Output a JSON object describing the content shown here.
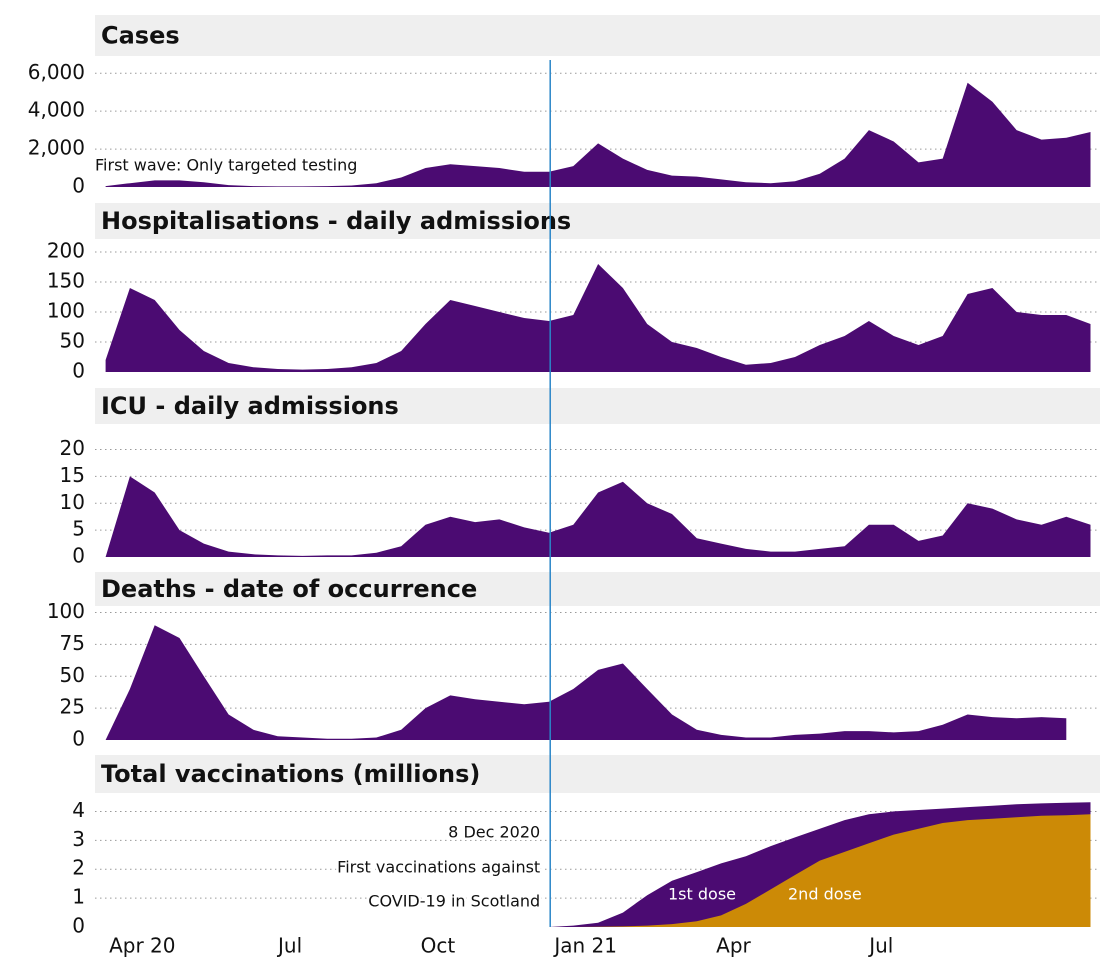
{
  "marker": {
    "x": 2020.94
  },
  "chart_data": [
    {
      "type": "area",
      "title": "Cases",
      "color": "#4b0b72",
      "x": [
        2020.188,
        2020.229,
        2020.271,
        2020.313,
        2020.354,
        2020.396,
        2020.438,
        2020.479,
        2020.521,
        2020.563,
        2020.604,
        2020.646,
        2020.688,
        2020.729,
        2020.771,
        2020.813,
        2020.854,
        2020.896,
        2020.938,
        2020.979,
        2021.021,
        2021.063,
        2021.104,
        2021.146,
        2021.188,
        2021.229,
        2021.271,
        2021.313,
        2021.354,
        2021.396,
        2021.438,
        2021.479,
        2021.521,
        2021.563,
        2021.604,
        2021.646,
        2021.688,
        2021.729,
        2021.771,
        2021.813,
        2021.854
      ],
      "values": [
        50,
        200,
        350,
        350,
        250,
        100,
        50,
        30,
        30,
        50,
        80,
        200,
        500,
        1000,
        1200,
        1100,
        1000,
        800,
        800,
        1100,
        2300,
        1500,
        900,
        600,
        550,
        400,
        250,
        200,
        300,
        700,
        1500,
        3000,
        2400,
        1300,
        1500,
        5500,
        4500,
        3000,
        2500,
        2600,
        2900
      ],
      "xlim": [
        2020.17,
        2021.87
      ],
      "ylim": [
        0,
        6700
      ],
      "yticks": [
        0,
        {
          "value": 2000,
          "label": "2,000"
        },
        {
          "value": 4000,
          "label": "4,000"
        },
        {
          "value": 6000,
          "label": "6,000"
        }
      ],
      "grid": true,
      "annotations": [
        {
          "text": "First wave: Only targeted testing"
        }
      ]
    },
    {
      "type": "area",
      "title": "Hospitalisations - daily admissions",
      "color": "#4b0b72",
      "x": [
        2020.188,
        2020.229,
        2020.271,
        2020.313,
        2020.354,
        2020.396,
        2020.438,
        2020.479,
        2020.521,
        2020.563,
        2020.604,
        2020.646,
        2020.688,
        2020.729,
        2020.771,
        2020.813,
        2020.854,
        2020.896,
        2020.938,
        2020.979,
        2021.021,
        2021.063,
        2021.104,
        2021.146,
        2021.188,
        2021.229,
        2021.271,
        2021.313,
        2021.354,
        2021.396,
        2021.438,
        2021.479,
        2021.521,
        2021.563,
        2021.604,
        2021.646,
        2021.688,
        2021.729,
        2021.771,
        2021.813,
        2021.854
      ],
      "values": [
        20,
        140,
        120,
        70,
        35,
        15,
        8,
        5,
        4,
        5,
        8,
        15,
        35,
        80,
        120,
        110,
        100,
        90,
        85,
        95,
        180,
        140,
        80,
        50,
        40,
        25,
        12,
        15,
        25,
        45,
        60,
        85,
        60,
        45,
        60,
        130,
        140,
        100,
        95,
        95,
        80
      ],
      "xlim": [
        2020.17,
        2021.87
      ],
      "ylim": [
        0,
        215
      ],
      "yticks": [
        0,
        50,
        100,
        150,
        200
      ],
      "grid": true
    },
    {
      "type": "area",
      "title": "ICU - daily admissions",
      "color": "#4b0b72",
      "x": [
        2020.188,
        2020.229,
        2020.271,
        2020.313,
        2020.354,
        2020.396,
        2020.438,
        2020.479,
        2020.521,
        2020.563,
        2020.604,
        2020.646,
        2020.688,
        2020.729,
        2020.771,
        2020.813,
        2020.854,
        2020.896,
        2020.938,
        2020.979,
        2021.021,
        2021.063,
        2021.104,
        2021.146,
        2021.188,
        2021.229,
        2021.271,
        2021.313,
        2021.354,
        2021.396,
        2021.438,
        2021.479,
        2021.521,
        2021.563,
        2021.604,
        2021.646,
        2021.688,
        2021.729,
        2021.771,
        2021.813,
        2021.854
      ],
      "values": [
        0,
        15,
        12,
        5,
        2.5,
        1,
        0.5,
        0.3,
        0.2,
        0.3,
        0.3,
        0.8,
        2,
        6,
        7.5,
        6.5,
        7,
        5.5,
        4.5,
        6,
        12,
        14,
        10,
        8,
        3.5,
        2.5,
        1.5,
        1,
        1,
        1.5,
        2,
        6,
        6,
        3,
        4,
        10,
        9,
        7,
        6,
        7.5,
        6
      ],
      "xlim": [
        2020.17,
        2021.87
      ],
      "ylim": [
        0,
        24
      ],
      "yticks": [
        0,
        5,
        10,
        15,
        20
      ],
      "grid": true
    },
    {
      "type": "area",
      "title": "Deaths - date of occurrence",
      "color": "#4b0b72",
      "x": [
        2020.188,
        2020.229,
        2020.271,
        2020.313,
        2020.354,
        2020.396,
        2020.438,
        2020.479,
        2020.521,
        2020.563,
        2020.604,
        2020.646,
        2020.688,
        2020.729,
        2020.771,
        2020.813,
        2020.854,
        2020.896,
        2020.938,
        2020.979,
        2021.021,
        2021.063,
        2021.104,
        2021.146,
        2021.188,
        2021.229,
        2021.271,
        2021.313,
        2021.354,
        2021.396,
        2021.438,
        2021.479,
        2021.521,
        2021.563,
        2021.604,
        2021.646,
        2021.688,
        2021.729,
        2021.771,
        2021.813,
        2021.854
      ],
      "values": [
        0,
        40,
        90,
        80,
        50,
        20,
        8,
        3,
        2,
        1,
        1,
        2,
        8,
        25,
        35,
        32,
        30,
        28,
        30,
        40,
        55,
        60,
        40,
        20,
        8,
        4,
        2,
        2,
        4,
        5,
        7,
        7,
        6,
        7,
        12,
        20,
        18,
        17,
        18,
        17,
        null
      ],
      "xlim": [
        2020.17,
        2021.87
      ],
      "ylim": [
        0,
        102
      ],
      "yticks": [
        0,
        25,
        50,
        75,
        100
      ],
      "grid": true
    },
    {
      "type": "area",
      "title": "Total vaccinations (millions)",
      "x": [
        2020.188,
        2020.229,
        2020.271,
        2020.313,
        2020.354,
        2020.396,
        2020.438,
        2020.479,
        2020.521,
        2020.563,
        2020.604,
        2020.646,
        2020.688,
        2020.729,
        2020.771,
        2020.813,
        2020.854,
        2020.896,
        2020.938,
        2020.979,
        2021.021,
        2021.063,
        2021.104,
        2021.146,
        2021.188,
        2021.229,
        2021.271,
        2021.313,
        2021.354,
        2021.396,
        2021.438,
        2021.479,
        2021.521,
        2021.563,
        2021.604,
        2021.646,
        2021.688,
        2021.729,
        2021.771,
        2021.813,
        2021.854
      ],
      "series": [
        {
          "name": "1st dose",
          "color": "#4b0b72",
          "values": [
            null,
            null,
            null,
            null,
            null,
            null,
            null,
            null,
            null,
            null,
            null,
            null,
            null,
            null,
            null,
            null,
            null,
            null,
            0,
            0.05,
            0.15,
            0.5,
            1.1,
            1.6,
            1.9,
            2.2,
            2.45,
            2.8,
            3.1,
            3.4,
            3.7,
            3.9,
            4.0,
            4.05,
            4.1,
            4.15,
            4.2,
            4.25,
            4.28,
            4.3,
            4.32
          ]
        },
        {
          "name": "2nd dose",
          "color": "#cc8a06",
          "values": [
            null,
            null,
            null,
            null,
            null,
            null,
            null,
            null,
            null,
            null,
            null,
            null,
            null,
            null,
            null,
            null,
            null,
            null,
            0,
            0,
            0.01,
            0.02,
            0.05,
            0.1,
            0.2,
            0.4,
            0.8,
            1.3,
            1.8,
            2.3,
            2.6,
            2.9,
            3.2,
            3.4,
            3.6,
            3.7,
            3.75,
            3.8,
            3.85,
            3.87,
            3.9
          ]
        }
      ],
      "xlim": [
        2020.17,
        2021.87
      ],
      "ylim": [
        0,
        4.5
      ],
      "yticks": [
        0,
        1,
        2,
        3,
        4
      ],
      "grid": true,
      "xticks": [
        {
          "value": 2020.25,
          "label": "Apr 20"
        },
        {
          "value": 2020.5,
          "label": "Jul"
        },
        {
          "value": 2020.75,
          "label": "Oct"
        },
        {
          "value": 2021.0,
          "label": "Jan 21"
        },
        {
          "value": 2021.25,
          "label": "Apr"
        },
        {
          "value": 2021.5,
          "label": "Jul"
        }
      ],
      "annotations": [
        {
          "text": "8 Dec 2020"
        },
        {
          "text": "First vaccinations against"
        },
        {
          "text": "COVID-19 in Scotland"
        }
      ]
    }
  ]
}
